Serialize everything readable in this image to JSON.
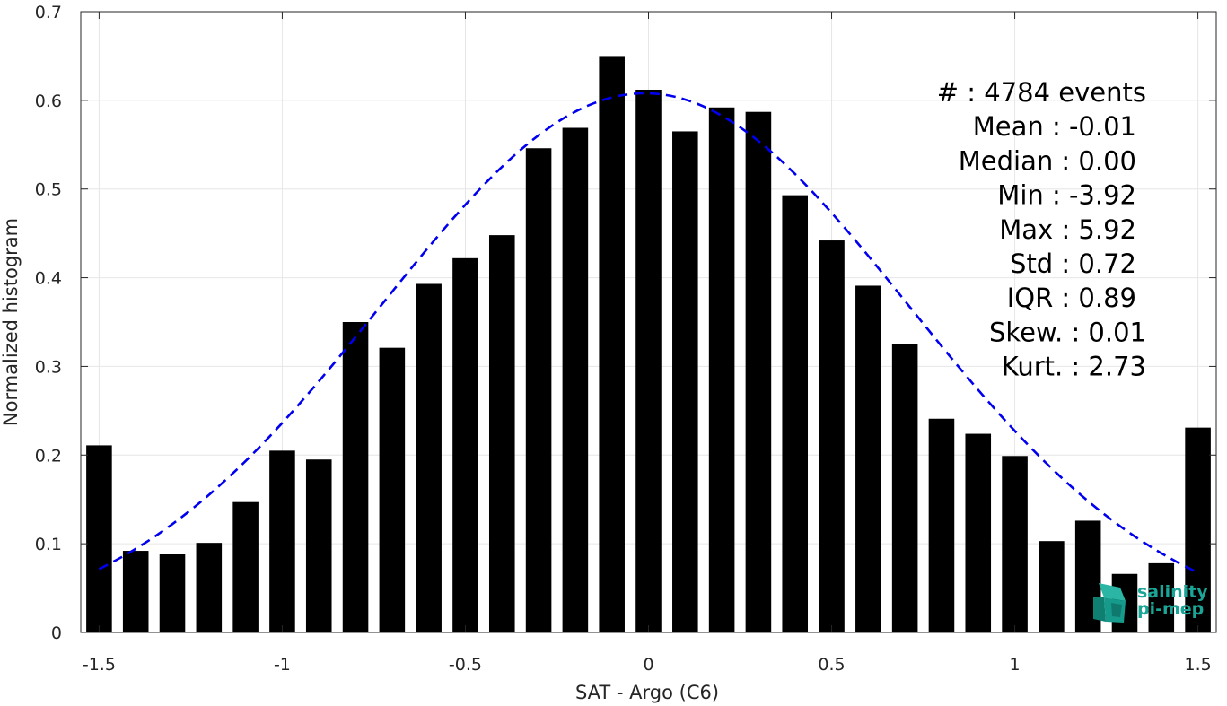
{
  "chart_data": {
    "type": "bar",
    "xlabel": "SAT - Argo (C6)",
    "ylabel": "Normalized histogram",
    "xlim": [
      -1.55,
      1.55
    ],
    "ylim": [
      0,
      0.7
    ],
    "x_ticks": [
      "-1.5",
      "-1",
      "-0.5",
      "0",
      "0.5",
      "1",
      "1.5"
    ],
    "x_tick_values": [
      -1.5,
      -1,
      -0.5,
      0,
      0.5,
      1,
      1.5
    ],
    "y_ticks": [
      "0",
      "0.1",
      "0.2",
      "0.3",
      "0.4",
      "0.5",
      "0.6",
      "0.7"
    ],
    "y_tick_values": [
      0,
      0.1,
      0.2,
      0.3,
      0.4,
      0.5,
      0.6,
      0.7
    ],
    "grid": true,
    "bar_color": "#000000",
    "x": [
      -1.5,
      -1.4,
      -1.3,
      -1.2,
      -1.1,
      -1.0,
      -0.9,
      -0.8,
      -0.7,
      -0.6,
      -0.5,
      -0.4,
      -0.3,
      -0.2,
      -0.1,
      0.0,
      0.1,
      0.2,
      0.3,
      0.4,
      0.5,
      0.6,
      0.7,
      0.8,
      0.9,
      1.0,
      1.1,
      1.2,
      1.3,
      1.4,
      1.5
    ],
    "values": [
      0.211,
      0.092,
      0.088,
      0.101,
      0.147,
      0.205,
      0.195,
      0.35,
      0.321,
      0.393,
      0.422,
      0.448,
      0.546,
      0.569,
      0.65,
      0.612,
      0.565,
      0.592,
      0.587,
      0.493,
      0.442,
      0.391,
      0.325,
      0.241,
      0.224,
      0.199,
      0.103,
      0.126,
      0.066,
      0.078,
      0.231
    ],
    "fit": {
      "type": "gaussian",
      "style": "dashed",
      "color": "#0000ee",
      "mean": -0.01,
      "std": 0.72,
      "peak": 0.608,
      "x_range": [
        -1.5,
        1.5
      ]
    }
  },
  "stats": [
    {
      "text": "#  : 4784 events",
      "anchor_x": 1277
    },
    {
      "text": "Mean : -0.01",
      "anchor_x": 1266
    },
    {
      "text": "Median : 0.00",
      "anchor_x": 1266
    },
    {
      "text": "Min : -3.92",
      "anchor_x": 1266
    },
    {
      "text": "Max : 5.92",
      "anchor_x": 1266
    },
    {
      "text": "Std : 0.72",
      "anchor_x": 1266
    },
    {
      "text": "IQR : 0.89",
      "anchor_x": 1266
    },
    {
      "text": "Skew. : 0.01",
      "anchor_x": 1277
    },
    {
      "text": "Kurt. : 2.73",
      "anchor_x": 1277
    }
  ],
  "logo": {
    "icon": "salinity-cube-icon",
    "line1": "salinity",
    "line2": "pi-mep",
    "color": "#1aa596"
  }
}
